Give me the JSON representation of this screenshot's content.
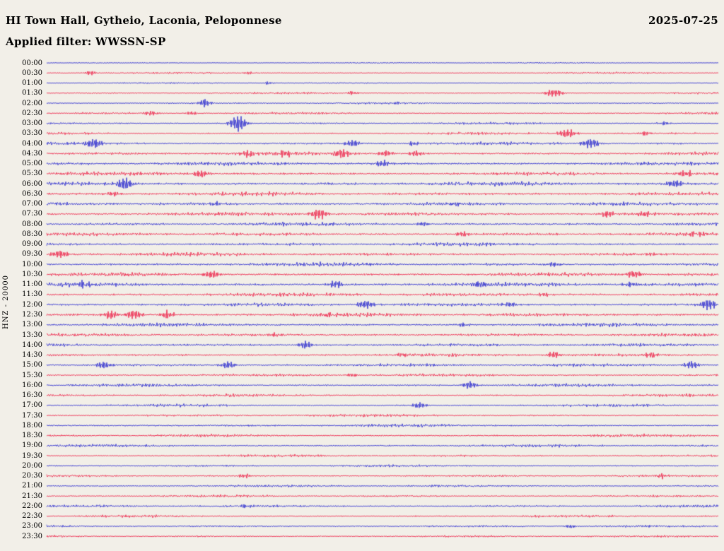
{
  "header": {
    "title": "HI Town Hall, Gytheio, Laconia, Peloponnese",
    "date": "2025-07-25",
    "filter_label": "Applied filter: WWSSN-SP"
  },
  "axis": {
    "left_label": "HNZ - 20000"
  },
  "palette": {
    "background": "#f2efe8",
    "red": "#ec0f3a",
    "blue": "#1717cc",
    "text": "#000000"
  },
  "chart_data": {
    "type": "line",
    "subtype": "helicorder-seismogram",
    "title": "HI Town Hall, Gytheio, Laconia, Peloponnese",
    "date": "2025-07-25",
    "filter": "WWSSN-SP",
    "channel": "HNZ",
    "gain": 20000,
    "minutes_per_row": 30,
    "x_range_minutes": [
      0,
      30
    ],
    "legend": "alternating blue (hh:00) and red (hh:30) half-hour traces",
    "rows": [
      {
        "label": "00:00",
        "color": "blue",
        "amp": 1.3,
        "events": []
      },
      {
        "label": "00:30",
        "color": "red",
        "amp": 1.6,
        "events": [
          [
            0.065,
            4,
            6
          ],
          [
            0.3,
            2.5,
            5
          ]
        ]
      },
      {
        "label": "01:00",
        "color": "blue",
        "amp": 1.4,
        "events": [
          [
            0.33,
            2.5,
            5
          ]
        ]
      },
      {
        "label": "01:30",
        "color": "red",
        "amp": 1.6,
        "events": [
          [
            0.455,
            3,
            6
          ],
          [
            0.755,
            6,
            9
          ]
        ]
      },
      {
        "label": "02:00",
        "color": "blue",
        "amp": 1.7,
        "events": [
          [
            0.235,
            7,
            5
          ],
          [
            0.52,
            2.5,
            5
          ]
        ]
      },
      {
        "label": "02:30",
        "color": "red",
        "amp": 2.0,
        "events": [
          [
            0.155,
            4,
            7
          ],
          [
            0.215,
            3.5,
            6
          ]
        ]
      },
      {
        "label": "03:00",
        "color": "blue",
        "amp": 2.0,
        "events": [
          [
            0.285,
            13,
            8
          ],
          [
            0.92,
            3,
            6
          ]
        ]
      },
      {
        "label": "03:30",
        "color": "red",
        "amp": 2.2,
        "events": [
          [
            0.775,
            7,
            9
          ],
          [
            0.89,
            3.5,
            6
          ]
        ]
      },
      {
        "label": "04:00",
        "color": "blue",
        "amp": 2.6,
        "events": [
          [
            0.07,
            8,
            8
          ],
          [
            0.455,
            6,
            7
          ],
          [
            0.545,
            4,
            6
          ],
          [
            0.81,
            7,
            9
          ]
        ]
      },
      {
        "label": "04:30",
        "color": "red",
        "amp": 3.0,
        "events": [
          [
            0.3,
            5,
            7
          ],
          [
            0.355,
            6,
            8
          ],
          [
            0.44,
            7,
            8
          ],
          [
            0.505,
            5,
            7
          ],
          [
            0.55,
            5,
            7
          ]
        ]
      },
      {
        "label": "05:00",
        "color": "blue",
        "amp": 3.2,
        "events": [
          [
            0.5,
            5,
            8
          ]
        ]
      },
      {
        "label": "05:30",
        "color": "red",
        "amp": 3.2,
        "events": [
          [
            0.23,
            6,
            8
          ],
          [
            0.95,
            5,
            8
          ]
        ]
      },
      {
        "label": "06:00",
        "color": "blue",
        "amp": 3.5,
        "events": [
          [
            0.115,
            9,
            8
          ],
          [
            0.935,
            6,
            8
          ]
        ]
      },
      {
        "label": "06:30",
        "color": "red",
        "amp": 3.5,
        "events": [
          [
            0.1,
            4,
            7
          ]
        ]
      },
      {
        "label": "07:00",
        "color": "blue",
        "amp": 3.4,
        "events": [
          [
            0.25,
            3.5,
            6
          ],
          [
            0.61,
            3.5,
            6
          ]
        ]
      },
      {
        "label": "07:30",
        "color": "red",
        "amp": 3.5,
        "events": [
          [
            0.405,
            9,
            8
          ],
          [
            0.835,
            6,
            7
          ],
          [
            0.89,
            5,
            7
          ]
        ]
      },
      {
        "label": "08:00",
        "color": "blue",
        "amp": 3.2,
        "events": [
          [
            0.56,
            3,
            6
          ]
        ]
      },
      {
        "label": "08:30",
        "color": "red",
        "amp": 3.2,
        "events": [
          [
            0.62,
            4,
            7
          ],
          [
            0.96,
            4,
            6
          ]
        ]
      },
      {
        "label": "09:00",
        "color": "blue",
        "amp": 3.0,
        "events": []
      },
      {
        "label": "09:30",
        "color": "red",
        "amp": 3.2,
        "events": [
          [
            0.02,
            7,
            8
          ]
        ]
      },
      {
        "label": "10:00",
        "color": "blue",
        "amp": 3.4,
        "events": [
          [
            0.755,
            4,
            7
          ]
        ]
      },
      {
        "label": "10:30",
        "color": "red",
        "amp": 3.4,
        "events": [
          [
            0.245,
            6,
            8
          ],
          [
            0.875,
            6,
            8
          ]
        ]
      },
      {
        "label": "11:00",
        "color": "blue",
        "amp": 3.6,
        "events": [
          [
            0.055,
            5,
            7
          ],
          [
            0.43,
            6,
            8
          ],
          [
            0.645,
            5,
            7
          ],
          [
            0.87,
            4,
            7
          ]
        ]
      },
      {
        "label": "11:30",
        "color": "red",
        "amp": 3.4,
        "events": [
          [
            0.74,
            3.5,
            6
          ]
        ]
      },
      {
        "label": "12:00",
        "color": "blue",
        "amp": 3.2,
        "events": [
          [
            0.475,
            7,
            8
          ],
          [
            0.69,
            4,
            7
          ],
          [
            0.985,
            8,
            8
          ]
        ]
      },
      {
        "label": "12:30",
        "color": "red",
        "amp": 3.4,
        "events": [
          [
            0.095,
            7,
            7
          ],
          [
            0.13,
            8,
            8
          ],
          [
            0.18,
            6,
            7
          ],
          [
            0.42,
            3.5,
            6
          ]
        ]
      },
      {
        "label": "13:00",
        "color": "blue",
        "amp": 3.2,
        "events": [
          [
            0.62,
            3.5,
            6
          ]
        ]
      },
      {
        "label": "13:30",
        "color": "red",
        "amp": 3.0,
        "events": [
          [
            0.34,
            3,
            6
          ]
        ]
      },
      {
        "label": "14:00",
        "color": "blue",
        "amp": 2.8,
        "events": [
          [
            0.385,
            6,
            7
          ]
        ]
      },
      {
        "label": "14:30",
        "color": "red",
        "amp": 2.8,
        "events": [
          [
            0.53,
            3,
            6
          ],
          [
            0.755,
            5,
            7
          ],
          [
            0.9,
            5,
            7
          ]
        ]
      },
      {
        "label": "15:00",
        "color": "blue",
        "amp": 2.8,
        "events": [
          [
            0.085,
            6,
            7
          ],
          [
            0.27,
            6,
            7
          ],
          [
            0.96,
            6,
            8
          ]
        ]
      },
      {
        "label": "15:30",
        "color": "red",
        "amp": 2.6,
        "events": [
          [
            0.455,
            3,
            6
          ]
        ]
      },
      {
        "label": "16:00",
        "color": "blue",
        "amp": 2.6,
        "events": [
          [
            0.63,
            6,
            7
          ]
        ]
      },
      {
        "label": "16:30",
        "color": "red",
        "amp": 2.4,
        "events": []
      },
      {
        "label": "17:00",
        "color": "blue",
        "amp": 2.4,
        "events": [
          [
            0.555,
            5,
            7
          ]
        ]
      },
      {
        "label": "17:30",
        "color": "red",
        "amp": 2.5,
        "events": []
      },
      {
        "label": "18:00",
        "color": "blue",
        "amp": 2.5,
        "events": []
      },
      {
        "label": "18:30",
        "color": "red",
        "amp": 2.5,
        "events": []
      },
      {
        "label": "19:00",
        "color": "blue",
        "amp": 2.5,
        "events": []
      },
      {
        "label": "19:30",
        "color": "red",
        "amp": 2.2,
        "events": []
      },
      {
        "label": "20:00",
        "color": "blue",
        "amp": 2.1,
        "events": []
      },
      {
        "label": "20:30",
        "color": "red",
        "amp": 2.1,
        "events": [
          [
            0.295,
            4,
            6
          ],
          [
            0.915,
            4,
            6
          ]
        ]
      },
      {
        "label": "21:00",
        "color": "blue",
        "amp": 2.2,
        "events": []
      },
      {
        "label": "21:30",
        "color": "red",
        "amp": 2.1,
        "events": []
      },
      {
        "label": "22:00",
        "color": "blue",
        "amp": 2.3,
        "events": [
          [
            0.295,
            3,
            6
          ]
        ]
      },
      {
        "label": "22:30",
        "color": "red",
        "amp": 2.1,
        "events": []
      },
      {
        "label": "23:00",
        "color": "blue",
        "amp": 2.1,
        "events": [
          [
            0.78,
            3,
            6
          ]
        ]
      },
      {
        "label": "23:30",
        "color": "red",
        "amp": 1.9,
        "events": []
      }
    ]
  }
}
